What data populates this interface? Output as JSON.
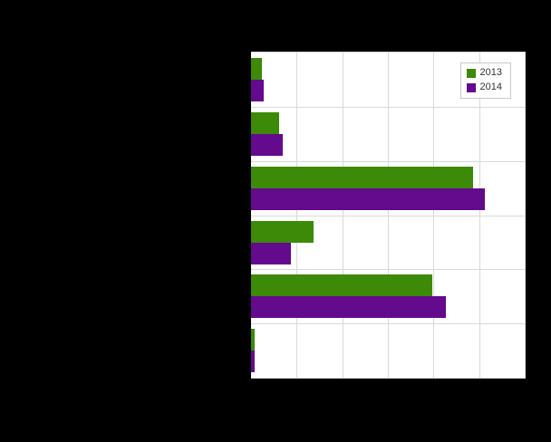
{
  "figure": {
    "background_color": "#000000",
    "plot_background_color": "#ffffff",
    "gridline_color": "#d9d9d9"
  },
  "legend": {
    "items": [
      {
        "label": "2013",
        "color": "#3c8a08"
      },
      {
        "label": "2014",
        "color": "#640a8c"
      }
    ]
  },
  "chart_data": {
    "type": "bar",
    "orientation": "horizontal",
    "title": "",
    "xlabel": "",
    "ylabel": "",
    "categories": [
      "",
      "",
      "",
      "",
      "",
      ""
    ],
    "series": [
      {
        "name": "2013",
        "color": "#3c8a08",
        "values": [
          0.24,
          0.62,
          4.87,
          1.38,
          3.97,
          0.08
        ]
      },
      {
        "name": "2014",
        "color": "#640a8c",
        "values": [
          0.28,
          0.7,
          5.13,
          0.87,
          4.28,
          0.08
        ]
      }
    ],
    "xlim": [
      0,
      6
    ],
    "x_gridlines": [
      0,
      1,
      2,
      3,
      4,
      5,
      6
    ],
    "grid": true,
    "legend_position": "top-right"
  }
}
